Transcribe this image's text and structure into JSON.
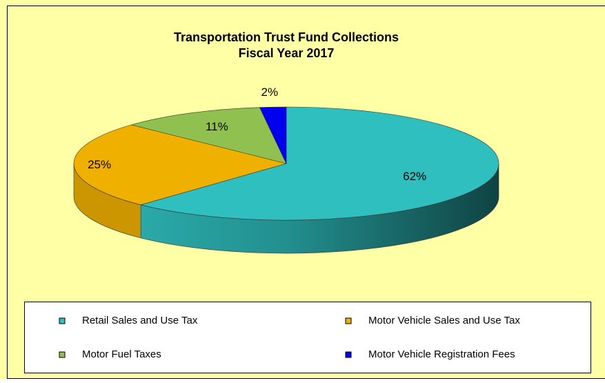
{
  "chart_data": {
    "type": "pie",
    "title": "Transportation Trust Fund Collections",
    "subtitle": "Fiscal Year 2017",
    "categories": [
      "Retail Sales and Use Tax",
      "Motor Vehicle Sales and Use Tax",
      "Motor Fuel Taxes",
      "Motor Vehicle Registration Fees"
    ],
    "values": [
      62,
      25,
      11,
      2
    ],
    "value_labels": [
      "62%",
      "25%",
      "11%",
      "2%"
    ],
    "colors": [
      "#2fbfbf",
      "#f0b000",
      "#8fc050",
      "#0000ee"
    ],
    "legend": "bottom"
  }
}
